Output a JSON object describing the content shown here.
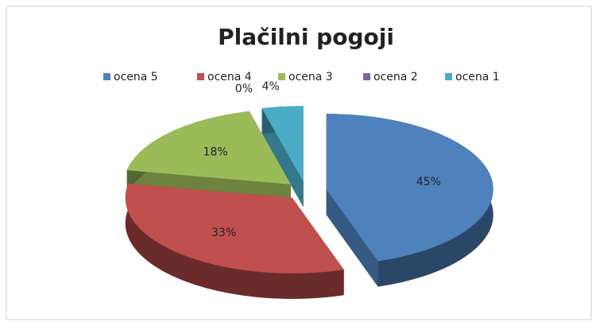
{
  "chart_data": {
    "type": "pie",
    "title": "Plačilni pogoji",
    "categories": [
      "ocena 5",
      "ocena 4",
      "ocena 3",
      "ocena 2",
      "ocena 1"
    ],
    "values": [
      45,
      33,
      18,
      0,
      4
    ],
    "value_labels": [
      "45%",
      "33%",
      "18%",
      "0%",
      "4%"
    ],
    "colors": [
      "#4f81bd",
      "#c0504d",
      "#9bbb59",
      "#8064a2",
      "#4bacc6"
    ],
    "legend": "top"
  }
}
